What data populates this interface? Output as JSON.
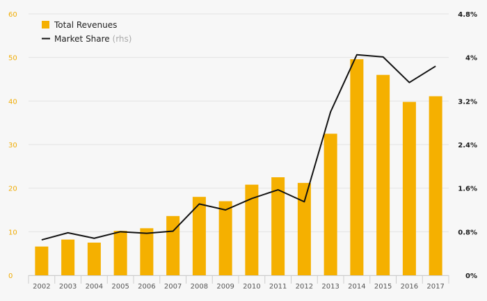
{
  "colors": {
    "bar": "#f5b000",
    "line": "#111111",
    "grid": "#e3e3e3",
    "left_axis_text": "#f0ab00",
    "background": "#f7f7f7"
  },
  "chart_data": {
    "type": "bar",
    "categories": [
      "2002",
      "2003",
      "2004",
      "2005",
      "2006",
      "2007",
      "2008",
      "2009",
      "2010",
      "2011",
      "2012",
      "2013",
      "2014",
      "2015",
      "2016",
      "2017"
    ],
    "series": [
      {
        "name": "Total Revenues",
        "type": "bar",
        "axis": "left",
        "values": [
          6.6,
          8.2,
          7.5,
          10.2,
          10.8,
          13.6,
          18.0,
          17.0,
          20.8,
          22.5,
          21.2,
          32.5,
          49.6,
          46.0,
          39.8,
          41.1
        ]
      },
      {
        "name": "Market Share",
        "name_suffix": "(rhs)",
        "type": "line",
        "axis": "right",
        "values": [
          0.65,
          0.78,
          0.68,
          0.8,
          0.77,
          0.81,
          1.31,
          1.2,
          1.41,
          1.57,
          1.35,
          3.0,
          4.05,
          4.01,
          3.54,
          3.84
        ]
      }
    ],
    "y_left": {
      "min": 0,
      "max": 60,
      "ticks": [
        "0",
        "10",
        "20",
        "30",
        "40",
        "50",
        "60"
      ]
    },
    "y_right": {
      "min": 0,
      "max": 4.8,
      "ticks": [
        "0%",
        "0.8%",
        "1.6%",
        "2.4%",
        "3.2%",
        "4%",
        "4.8%"
      ]
    },
    "grid": true,
    "legend_position": "top-left"
  }
}
